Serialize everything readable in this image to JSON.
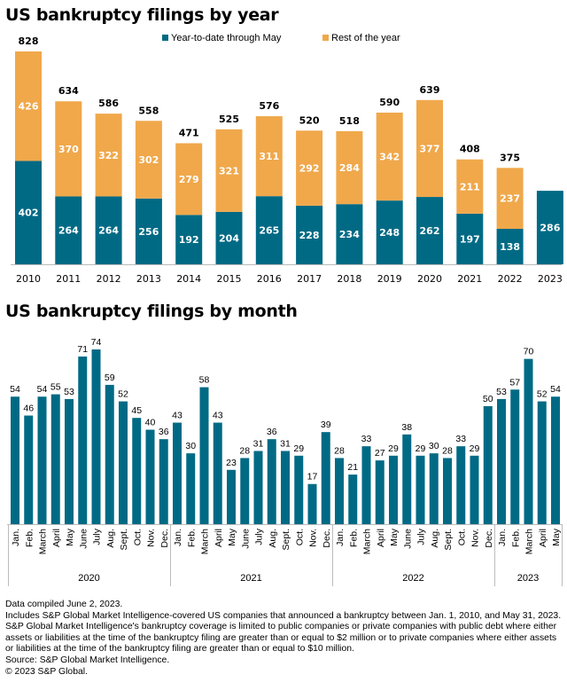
{
  "chart_data": [
    {
      "type": "bar",
      "stacked": true,
      "title": "US bankruptcy filings by year",
      "xlabel": "",
      "ylabel": "",
      "grid": false,
      "legend_position": "top-right",
      "categories": [
        "2010",
        "2011",
        "2012",
        "2013",
        "2014",
        "2015",
        "2016",
        "2017",
        "2018",
        "2019",
        "2020",
        "2021",
        "2022",
        "2023"
      ],
      "series": [
        {
          "name": "Year-to-date through May",
          "color": "#006a85",
          "values": [
            402,
            264,
            264,
            256,
            192,
            204,
            265,
            228,
            234,
            248,
            262,
            197,
            138,
            286
          ]
        },
        {
          "name": "Rest of the year",
          "color": "#f0a84b",
          "values": [
            426,
            370,
            322,
            302,
            279,
            321,
            311,
            292,
            284,
            342,
            377,
            211,
            237,
            null
          ]
        }
      ],
      "totals": [
        828,
        634,
        586,
        558,
        471,
        525,
        576,
        520,
        518,
        590,
        639,
        408,
        375,
        null
      ],
      "ylim": [
        0,
        850
      ]
    },
    {
      "type": "bar",
      "title": "US bankruptcy filings by month",
      "xlabel": "",
      "ylabel": "",
      "grid": false,
      "color": "#006a85",
      "groups": [
        {
          "label": "2020",
          "months": [
            "Jan.",
            "Feb.",
            "March",
            "April",
            "May",
            "June",
            "July",
            "Aug.",
            "Sept.",
            "Oct.",
            "Nov.",
            "Dec."
          ],
          "values": [
            54,
            46,
            54,
            55,
            53,
            71,
            74,
            59,
            52,
            45,
            40,
            36
          ]
        },
        {
          "label": "2021",
          "months": [
            "Jan.",
            "Feb.",
            "March",
            "April",
            "May",
            "June",
            "July",
            "Aug.",
            "Sept.",
            "Oct.",
            "Nov.",
            "Dec."
          ],
          "values": [
            43,
            30,
            58,
            43,
            23,
            28,
            31,
            36,
            31,
            29,
            17,
            39
          ]
        },
        {
          "label": "2022",
          "months": [
            "Jan.",
            "Feb.",
            "March",
            "April",
            "May",
            "June",
            "July",
            "Aug.",
            "Sept.",
            "Oct.",
            "Nov.",
            "Dec."
          ],
          "values": [
            28,
            21,
            33,
            27,
            29,
            38,
            29,
            30,
            28,
            33,
            29,
            50
          ]
        },
        {
          "label": "2023",
          "months": [
            "Jan.",
            "Feb.",
            "March",
            "April",
            "May"
          ],
          "values": [
            53,
            57,
            70,
            52,
            54
          ]
        }
      ],
      "ylim": [
        0,
        75
      ]
    }
  ],
  "notes": [
    "Data compiled June 2, 2023.",
    "Includes S&P Global Market Intelligence-covered US companies that announced a bankruptcy between Jan. 1, 2010, and May 31, 2023.",
    "S&P Global Market Intelligence's bankruptcy coverage is limited to public companies or private companies with public debt where either assets or liabilities at the time of the bankruptcy filing are greater than or equal to $2 million or to private companies where either assets or liabilities at the time of the bankruptcy filing are greater than or equal to $10 million.",
    "Source: S&P Global Market Intelligence.",
    "© 2023 S&P Global."
  ]
}
